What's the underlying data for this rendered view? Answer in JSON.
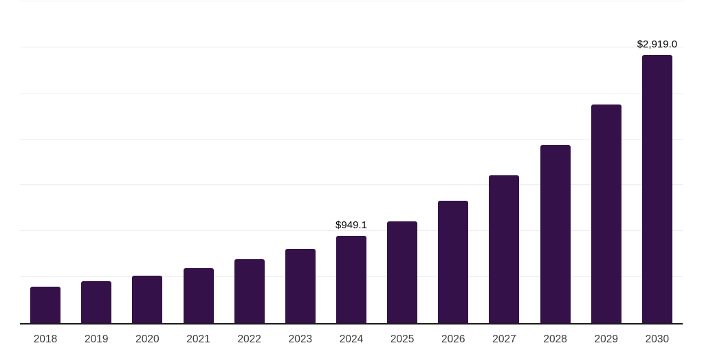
{
  "chart_data": {
    "type": "bar",
    "title": "",
    "xlabel": "",
    "ylabel": "",
    "categories": [
      "2018",
      "2019",
      "2020",
      "2021",
      "2022",
      "2023",
      "2024",
      "2025",
      "2026",
      "2027",
      "2028",
      "2029",
      "2030"
    ],
    "values": [
      400,
      460,
      515,
      600,
      695,
      805,
      949.1,
      1110,
      1335,
      1605,
      1935,
      2375,
      2919
    ],
    "bar_labels": [
      "",
      "",
      "",
      "",
      "",
      "",
      "$949.1",
      "",
      "",
      "",
      "",
      "",
      "$2,919.0"
    ],
    "ylim": [
      0,
      3500
    ],
    "gridline_step": 500,
    "grid": true,
    "legend": false,
    "y_axis_labels_shown": false,
    "colors": {
      "bar": "#341149",
      "axis_line": "#1a1a1a",
      "gridline": "#ededed",
      "bar_label_text": "#000000",
      "x_tick_text": "#3a3a3a",
      "background": "#ffffff"
    }
  }
}
